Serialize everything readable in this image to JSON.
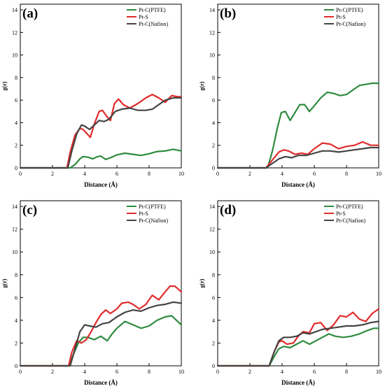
{
  "figure": {
    "common_xlabel": "Distance  (Å)",
    "common_ylabel": "g(r)"
  },
  "chart_data": [
    {
      "type": "line",
      "panel_label": "(a)",
      "xlabel": "Distance  (Å)",
      "ylabel": "g(r)",
      "xlim": [
        0,
        10
      ],
      "ylim": [
        0,
        14.5
      ],
      "xticks": [
        0,
        2,
        4,
        6,
        8,
        10
      ],
      "yticks": [
        0,
        2,
        4,
        6,
        8,
        10,
        12,
        14
      ],
      "legend_position": "top-right",
      "series": [
        {
          "name": "Pt-C(PTFE)",
          "color": "#2e8b3e",
          "x": [
            0,
            3.1,
            3.4,
            3.7,
            3.9,
            4.2,
            4.5,
            4.8,
            5.0,
            5.3,
            5.6,
            6.0,
            6.5,
            7.0,
            7.5,
            8.0,
            8.5,
            9.0,
            9.5,
            10
          ],
          "y": [
            0,
            0,
            0.3,
            0.8,
            1.0,
            0.95,
            0.8,
            1.0,
            1.05,
            0.75,
            0.9,
            1.15,
            1.3,
            1.2,
            1.1,
            1.25,
            1.45,
            1.5,
            1.65,
            1.5
          ]
        },
        {
          "name": "Pt-S",
          "color": "#e02b2b",
          "x": [
            0,
            2.9,
            3.1,
            3.4,
            3.7,
            3.9,
            4.1,
            4.35,
            4.6,
            4.9,
            5.1,
            5.35,
            5.6,
            5.85,
            6.1,
            6.4,
            6.8,
            7.3,
            7.8,
            8.2,
            8.6,
            9.0,
            9.4,
            9.8,
            10
          ],
          "y": [
            0,
            0,
            1.4,
            2.9,
            3.5,
            3.4,
            3.1,
            2.7,
            3.9,
            5.0,
            5.1,
            4.6,
            4.2,
            5.7,
            6.1,
            5.6,
            5.3,
            5.7,
            6.2,
            6.5,
            6.2,
            5.8,
            6.4,
            6.3,
            6.3
          ]
        },
        {
          "name": "Pt-C(Nafion)",
          "color": "#444444",
          "x": [
            0,
            2.95,
            3.2,
            3.5,
            3.8,
            4.0,
            4.3,
            4.6,
            4.9,
            5.2,
            5.5,
            5.9,
            6.3,
            6.8,
            7.3,
            7.8,
            8.2,
            8.6,
            9.0,
            9.5,
            10
          ],
          "y": [
            0,
            0,
            1.5,
            3.0,
            3.8,
            3.7,
            3.4,
            3.8,
            4.2,
            4.1,
            4.3,
            5.0,
            5.2,
            5.3,
            5.1,
            5.1,
            5.2,
            5.6,
            6.0,
            6.2,
            6.2
          ]
        }
      ]
    },
    {
      "type": "line",
      "panel_label": "(b)",
      "xlabel": "Distance  (Å)",
      "ylabel": "g(r)",
      "xlim": [
        0,
        10
      ],
      "ylim": [
        0,
        14.5
      ],
      "xticks": [
        0,
        2,
        4,
        6,
        8,
        10
      ],
      "yticks": [
        0,
        2,
        4,
        6,
        8,
        10,
        12,
        14
      ],
      "legend_position": "top-right",
      "series": [
        {
          "name": "Pt-C(PTFE)",
          "color": "#2e8b3e",
          "x": [
            0,
            3.1,
            3.4,
            3.7,
            3.95,
            4.2,
            4.5,
            4.8,
            5.1,
            5.4,
            5.7,
            6.0,
            6.4,
            6.8,
            7.2,
            7.6,
            8.0,
            8.4,
            8.8,
            9.2,
            9.6,
            10
          ],
          "y": [
            0,
            0,
            1.5,
            3.5,
            4.9,
            5.0,
            4.2,
            4.9,
            5.6,
            5.6,
            5.0,
            5.5,
            6.2,
            6.7,
            6.6,
            6.4,
            6.5,
            6.9,
            7.3,
            7.4,
            7.5,
            7.5
          ]
        },
        {
          "name": "Pt-S",
          "color": "#e02b2b",
          "x": [
            0,
            3.0,
            3.4,
            3.8,
            4.1,
            4.4,
            4.8,
            5.2,
            5.6,
            6.0,
            6.5,
            7.0,
            7.5,
            8.0,
            8.5,
            9.0,
            9.5,
            10
          ],
          "y": [
            0,
            0,
            0.7,
            1.4,
            1.6,
            1.5,
            1.2,
            1.3,
            1.2,
            1.7,
            2.2,
            2.1,
            1.7,
            1.9,
            2.0,
            2.3,
            2.0,
            2.0
          ]
        },
        {
          "name": "Pt-C(Nafion)",
          "color": "#444444",
          "x": [
            0,
            3.0,
            3.4,
            3.8,
            4.2,
            4.6,
            5.0,
            5.5,
            6.0,
            6.5,
            7.0,
            7.5,
            8.0,
            8.5,
            9.0,
            9.5,
            10
          ],
          "y": [
            0,
            0,
            0.4,
            0.8,
            1.0,
            0.9,
            1.1,
            1.1,
            1.3,
            1.5,
            1.5,
            1.4,
            1.5,
            1.6,
            1.7,
            1.8,
            1.8
          ]
        }
      ]
    },
    {
      "type": "line",
      "panel_label": "(c)",
      "xlabel": "Distance  (Å)",
      "ylabel": "g(r)",
      "xlim": [
        0,
        10
      ],
      "ylim": [
        0,
        14.5
      ],
      "xticks": [
        0,
        2,
        4,
        6,
        8,
        10
      ],
      "yticks": [
        0,
        2,
        4,
        6,
        8,
        10,
        12,
        14
      ],
      "legend_position": "top-right",
      "series": [
        {
          "name": "Pt-C(PTFE)",
          "color": "#2e8b3e",
          "x": [
            0,
            3.0,
            3.3,
            3.6,
            3.9,
            4.2,
            4.6,
            5.0,
            5.4,
            5.7,
            6.0,
            6.5,
            7.0,
            7.5,
            8.0,
            8.5,
            9.0,
            9.4,
            9.7,
            10
          ],
          "y": [
            0,
            0,
            1.0,
            2.0,
            2.5,
            2.5,
            2.3,
            2.6,
            2.2,
            2.8,
            3.3,
            3.9,
            3.6,
            3.3,
            3.5,
            4.0,
            4.3,
            4.4,
            4.0,
            3.6
          ]
        },
        {
          "name": "Pt-S",
          "color": "#e02b2b",
          "x": [
            0,
            3.0,
            3.2,
            3.5,
            3.8,
            4.1,
            4.4,
            4.7,
            5.0,
            5.3,
            5.6,
            6.0,
            6.3,
            6.7,
            7.0,
            7.4,
            7.8,
            8.2,
            8.6,
            9.0,
            9.3,
            9.6,
            10
          ],
          "y": [
            0,
            0,
            1.2,
            2.2,
            2.0,
            2.3,
            3.0,
            3.8,
            4.5,
            4.9,
            4.6,
            5.0,
            5.5,
            5.6,
            5.4,
            5.0,
            5.4,
            6.2,
            5.8,
            6.5,
            7.0,
            7.0,
            6.5
          ]
        },
        {
          "name": "Pt-C(Nafion)",
          "color": "#444444",
          "x": [
            0,
            3.1,
            3.4,
            3.7,
            4.0,
            4.3,
            4.7,
            5.1,
            5.5,
            6.0,
            6.5,
            7.0,
            7.5,
            8.0,
            8.5,
            9.0,
            9.5,
            10
          ],
          "y": [
            0,
            0,
            1.5,
            3.0,
            3.6,
            3.5,
            3.4,
            3.7,
            3.8,
            4.3,
            4.7,
            4.9,
            4.8,
            5.1,
            5.3,
            5.4,
            5.6,
            5.5
          ]
        }
      ]
    },
    {
      "type": "line",
      "panel_label": "(d)",
      "xlabel": "Distance  (Å)",
      "ylabel": "g(r)",
      "xlim": [
        0,
        10
      ],
      "ylim": [
        0,
        14.5
      ],
      "xticks": [
        0,
        2,
        4,
        6,
        8,
        10
      ],
      "yticks": [
        0,
        2,
        4,
        6,
        8,
        10,
        12,
        14
      ],
      "legend_position": "top-right",
      "series": [
        {
          "name": "Pt-C(PTFE)",
          "color": "#2e8b3e",
          "x": [
            0,
            3.2,
            3.5,
            3.8,
            4.1,
            4.5,
            4.9,
            5.3,
            5.7,
            6.1,
            6.5,
            6.9,
            7.3,
            7.8,
            8.3,
            8.8,
            9.3,
            9.7,
            10
          ],
          "y": [
            0,
            0,
            0.8,
            1.5,
            1.7,
            1.6,
            1.9,
            2.2,
            1.9,
            2.2,
            2.5,
            2.8,
            2.6,
            2.5,
            2.6,
            2.8,
            3.1,
            3.3,
            3.3
          ]
        },
        {
          "name": "Pt-S",
          "color": "#e02b2b",
          "x": [
            0,
            3.2,
            3.5,
            3.8,
            4.0,
            4.3,
            4.7,
            5.0,
            5.3,
            5.7,
            6.0,
            6.4,
            6.8,
            7.2,
            7.6,
            8.0,
            8.4,
            8.8,
            9.2,
            9.6,
            10
          ],
          "y": [
            0,
            0,
            1.2,
            2.1,
            2.2,
            1.9,
            2.0,
            2.6,
            3.0,
            2.9,
            3.7,
            3.8,
            3.1,
            3.6,
            4.4,
            4.3,
            4.7,
            4.1,
            3.9,
            4.6,
            5.0
          ]
        },
        {
          "name": "Pt-C(Nafion)",
          "color": "#444444",
          "x": [
            0,
            3.2,
            3.5,
            3.8,
            4.1,
            4.5,
            4.9,
            5.3,
            5.7,
            6.1,
            6.5,
            7.0,
            7.5,
            8.0,
            8.5,
            9.0,
            9.5,
            10
          ],
          "y": [
            0,
            0,
            1.2,
            2.2,
            2.5,
            2.5,
            2.6,
            2.9,
            2.8,
            3.0,
            3.2,
            3.3,
            3.4,
            3.5,
            3.5,
            3.6,
            3.8,
            3.9
          ]
        }
      ]
    }
  ]
}
